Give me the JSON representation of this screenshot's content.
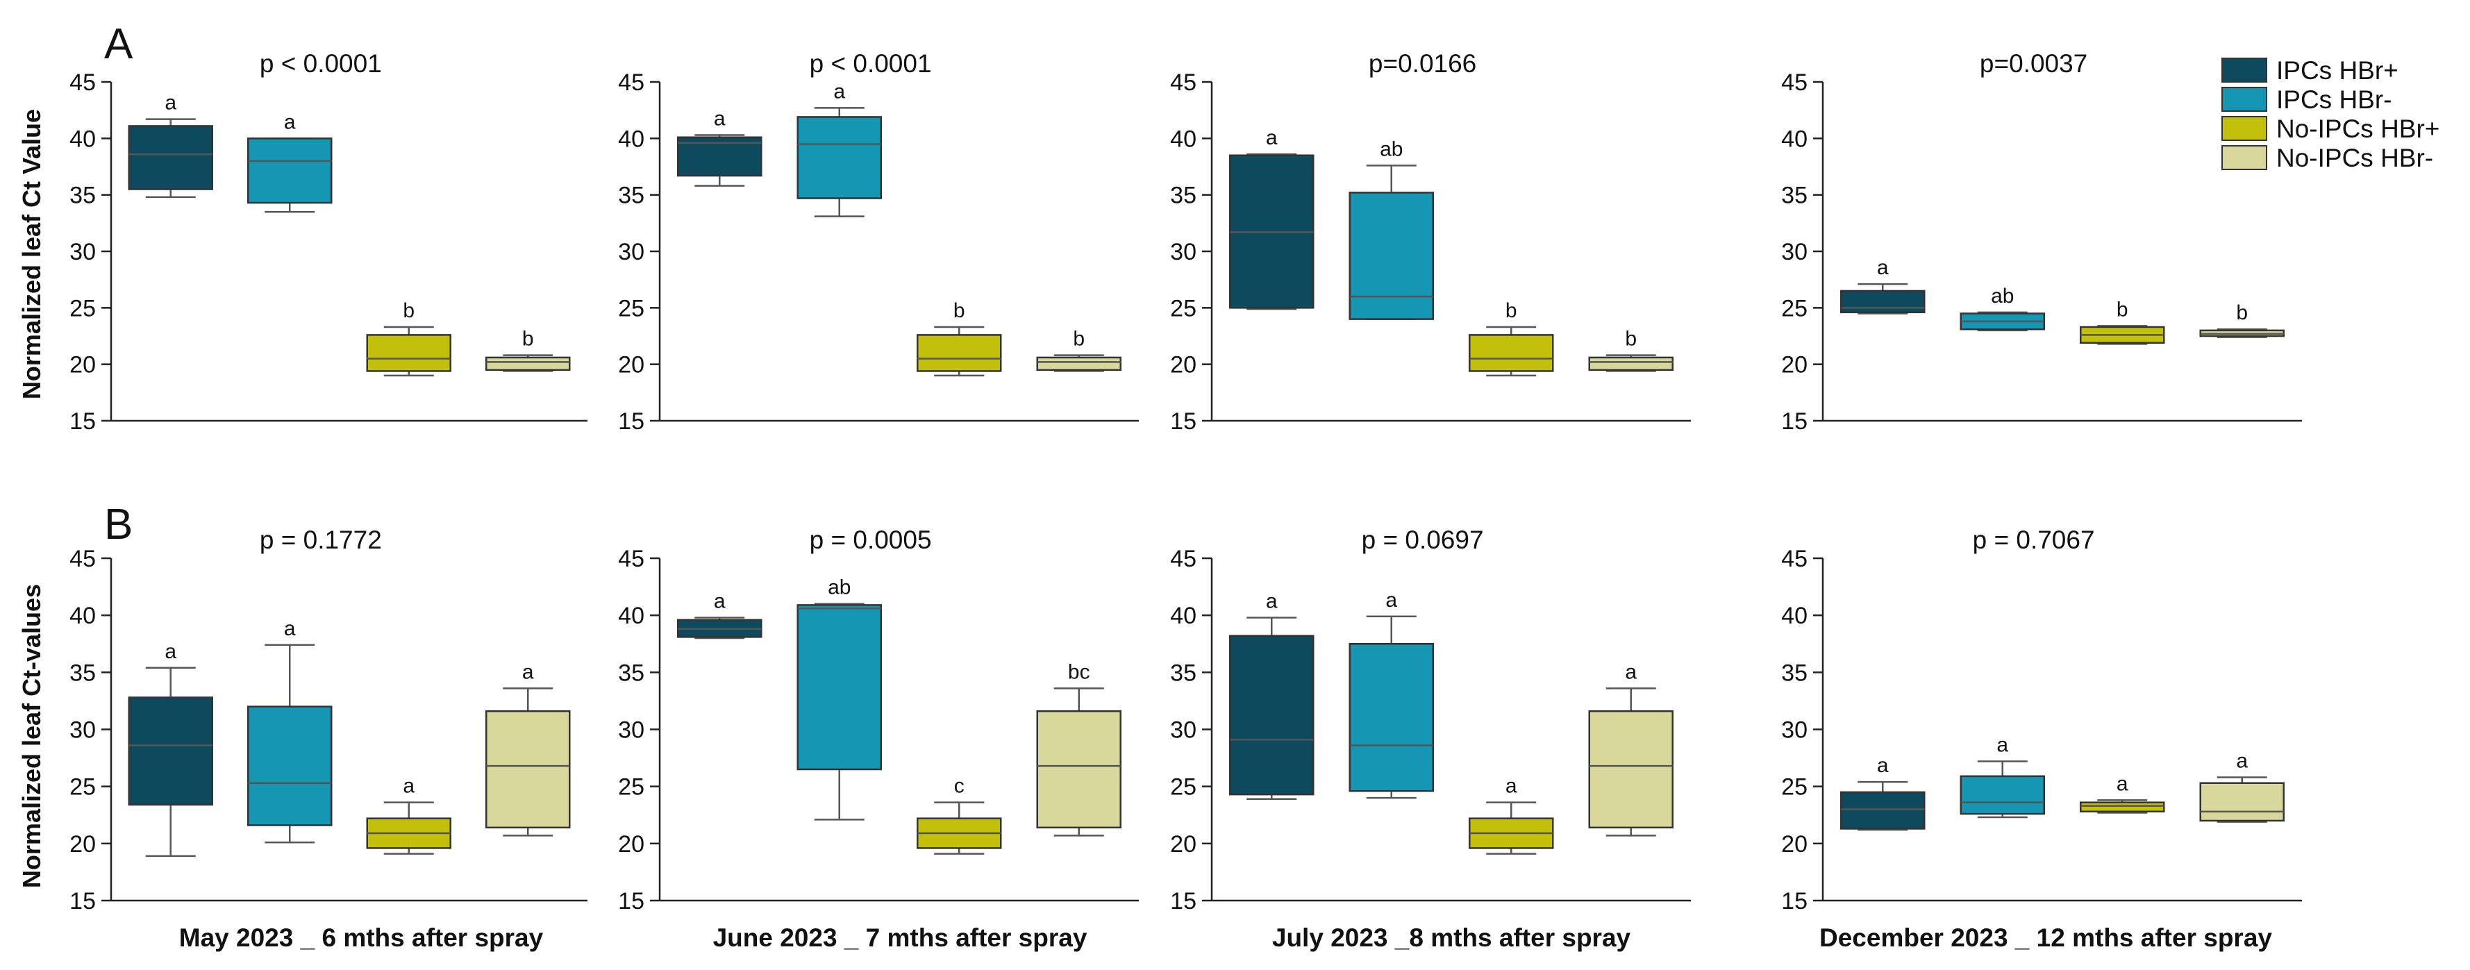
{
  "legend": [
    {
      "name": "IPCs HBr+",
      "color": "#0d4a5e"
    },
    {
      "name": "IPCs HBr-",
      "color": "#1597b4"
    },
    {
      "name": "No-IPCs HBr+",
      "color": "#c2c00a"
    },
    {
      "name": "No-IPCs HBr-",
      "color": "#d8d79c"
    }
  ],
  "panel_letters": [
    "A",
    "B"
  ],
  "row_ylabels": [
    "Normalized leaf Ct Value",
    "Normalized leaf Ct-values"
  ],
  "column_xlabels": [
    "May 2023 _ 6 mths after spray",
    "June 2023 _ 7 mths after spray",
    "July 2023 _8 mths after spray",
    "December 2023 _ 12 mths after spray"
  ],
  "chart_data": [
    {
      "type": "box",
      "row": 0,
      "col": 0,
      "pvalue": "p < 0.0001",
      "ylim": [
        15,
        45
      ],
      "yticks": [
        15,
        20,
        25,
        30,
        35,
        40,
        45
      ],
      "series": [
        {
          "name": "IPCs HBr+",
          "min": 34.8,
          "q1": 35.5,
          "median": 38.6,
          "q3": 41.1,
          "max": 41.7,
          "letter": "a"
        },
        {
          "name": "IPCs HBr-",
          "min": 33.5,
          "q1": 34.3,
          "median": 38.0,
          "q3": 40.0,
          "max": 40.0,
          "letter": "a"
        },
        {
          "name": "No-IPCs HBr+",
          "min": 19.0,
          "q1": 19.4,
          "median": 20.5,
          "q3": 22.6,
          "max": 23.3,
          "letter": "b"
        },
        {
          "name": "No-IPCs HBr-",
          "min": 19.4,
          "q1": 19.5,
          "median": 20.2,
          "q3": 20.6,
          "max": 20.8,
          "letter": "b"
        }
      ]
    },
    {
      "type": "box",
      "row": 0,
      "col": 1,
      "pvalue": "p < 0.0001",
      "ylim": [
        15,
        45
      ],
      "yticks": [
        15,
        20,
        25,
        30,
        35,
        40,
        45
      ],
      "series": [
        {
          "name": "IPCs HBr+",
          "min": 35.8,
          "q1": 36.7,
          "median": 39.6,
          "q3": 40.1,
          "max": 40.3,
          "letter": "a"
        },
        {
          "name": "IPCs HBr-",
          "min": 33.1,
          "q1": 34.7,
          "median": 39.5,
          "q3": 41.9,
          "max": 42.7,
          "letter": "a"
        },
        {
          "name": "No-IPCs HBr+",
          "min": 19.0,
          "q1": 19.4,
          "median": 20.5,
          "q3": 22.6,
          "max": 23.3,
          "letter": "b"
        },
        {
          "name": "No-IPCs HBr-",
          "min": 19.4,
          "q1": 19.5,
          "median": 20.2,
          "q3": 20.6,
          "max": 20.8,
          "letter": "b"
        }
      ]
    },
    {
      "type": "box",
      "row": 0,
      "col": 2,
      "pvalue": "p=0.0166",
      "ylim": [
        15,
        45
      ],
      "yticks": [
        15,
        20,
        25,
        30,
        35,
        40,
        45
      ],
      "series": [
        {
          "name": "IPCs HBr+",
          "min": 24.9,
          "q1": 25.0,
          "median": 31.7,
          "q3": 38.5,
          "max": 38.6,
          "letter": "a"
        },
        {
          "name": "IPCs HBr-",
          "min": 24.0,
          "q1": 24.0,
          "median": 26.0,
          "q3": 35.2,
          "max": 37.6,
          "letter": "ab"
        },
        {
          "name": "No-IPCs HBr+",
          "min": 19.0,
          "q1": 19.4,
          "median": 20.5,
          "q3": 22.6,
          "max": 23.3,
          "letter": "b"
        },
        {
          "name": "No-IPCs HBr-",
          "min": 19.4,
          "q1": 19.5,
          "median": 20.2,
          "q3": 20.6,
          "max": 20.8,
          "letter": "b"
        }
      ]
    },
    {
      "type": "box",
      "row": 0,
      "col": 3,
      "pvalue": "p=0.0037",
      "ylim": [
        15,
        45
      ],
      "yticks": [
        15,
        20,
        25,
        30,
        35,
        40,
        45
      ],
      "series": [
        {
          "name": "IPCs HBr+",
          "min": 24.5,
          "q1": 24.6,
          "median": 25.0,
          "q3": 26.5,
          "max": 27.1,
          "letter": "a"
        },
        {
          "name": "IPCs HBr-",
          "min": 23.0,
          "q1": 23.1,
          "median": 23.8,
          "q3": 24.5,
          "max": 24.6,
          "letter": "ab"
        },
        {
          "name": "No-IPCs HBr+",
          "min": 21.8,
          "q1": 21.9,
          "median": 22.6,
          "q3": 23.3,
          "max": 23.4,
          "letter": "b"
        },
        {
          "name": "No-IPCs HBr-",
          "min": 22.4,
          "q1": 22.5,
          "median": 22.7,
          "q3": 23.0,
          "max": 23.1,
          "letter": "b"
        }
      ]
    },
    {
      "type": "box",
      "row": 1,
      "col": 0,
      "pvalue": "p = 0.1772",
      "ylim": [
        15,
        45
      ],
      "yticks": [
        15,
        20,
        25,
        30,
        35,
        40,
        45
      ],
      "series": [
        {
          "name": "IPCs HBr+",
          "min": 18.9,
          "q1": 23.4,
          "median": 28.6,
          "q3": 32.8,
          "max": 35.4,
          "letter": "a"
        },
        {
          "name": "IPCs HBr-",
          "min": 20.1,
          "q1": 21.6,
          "median": 25.3,
          "q3": 32.0,
          "max": 37.4,
          "letter": "a"
        },
        {
          "name": "No-IPCs HBr+",
          "min": 19.1,
          "q1": 19.6,
          "median": 20.9,
          "q3": 22.2,
          "max": 23.6,
          "letter": "a"
        },
        {
          "name": "No-IPCs HBr-",
          "min": 20.7,
          "q1": 21.4,
          "median": 26.8,
          "q3": 31.6,
          "max": 33.6,
          "letter": "a"
        }
      ]
    },
    {
      "type": "box",
      "row": 1,
      "col": 1,
      "pvalue": "p = 0.0005",
      "ylim": [
        15,
        45
      ],
      "yticks": [
        15,
        20,
        25,
        30,
        35,
        40,
        45
      ],
      "series": [
        {
          "name": "IPCs HBr+",
          "min": 38.0,
          "q1": 38.1,
          "median": 38.8,
          "q3": 39.6,
          "max": 39.8,
          "letter": "a"
        },
        {
          "name": "IPCs HBr-",
          "min": 22.1,
          "q1": 26.5,
          "median": 40.6,
          "q3": 40.9,
          "max": 41.0,
          "letter": "ab"
        },
        {
          "name": "No-IPCs HBr+",
          "min": 19.1,
          "q1": 19.6,
          "median": 20.9,
          "q3": 22.2,
          "max": 23.6,
          "letter": "c"
        },
        {
          "name": "No-IPCs HBr-",
          "min": 20.7,
          "q1": 21.4,
          "median": 26.8,
          "q3": 31.6,
          "max": 33.6,
          "letter": "bc"
        }
      ]
    },
    {
      "type": "box",
      "row": 1,
      "col": 2,
      "pvalue": "p = 0.0697",
      "ylim": [
        15,
        45
      ],
      "yticks": [
        15,
        20,
        25,
        30,
        35,
        40,
        45
      ],
      "series": [
        {
          "name": "IPCs HBr+",
          "min": 23.9,
          "q1": 24.3,
          "median": 29.1,
          "q3": 38.2,
          "max": 39.8,
          "letter": "a"
        },
        {
          "name": "IPCs HBr-",
          "min": 24.0,
          "q1": 24.6,
          "median": 28.6,
          "q3": 37.5,
          "max": 39.9,
          "letter": "a"
        },
        {
          "name": "No-IPCs HBr+",
          "min": 19.1,
          "q1": 19.6,
          "median": 20.9,
          "q3": 22.2,
          "max": 23.6,
          "letter": "a"
        },
        {
          "name": "No-IPCs HBr-",
          "min": 20.7,
          "q1": 21.4,
          "median": 26.8,
          "q3": 31.6,
          "max": 33.6,
          "letter": "a"
        }
      ]
    },
    {
      "type": "box",
      "row": 1,
      "col": 3,
      "pvalue": "p = 0.7067",
      "ylim": [
        15,
        45
      ],
      "yticks": [
        15,
        20,
        25,
        30,
        35,
        40,
        45
      ],
      "series": [
        {
          "name": "IPCs HBr+",
          "min": 21.2,
          "q1": 21.3,
          "median": 23.0,
          "q3": 24.5,
          "max": 25.4,
          "letter": "a"
        },
        {
          "name": "IPCs HBr-",
          "min": 22.3,
          "q1": 22.6,
          "median": 23.6,
          "q3": 25.9,
          "max": 27.2,
          "letter": "a"
        },
        {
          "name": "No-IPCs HBr+",
          "min": 22.7,
          "q1": 22.8,
          "median": 23.3,
          "q3": 23.6,
          "max": 23.8,
          "letter": "a"
        },
        {
          "name": "No-IPCs HBr-",
          "min": 21.9,
          "q1": 22.0,
          "median": 22.8,
          "q3": 25.3,
          "max": 25.8,
          "letter": "a"
        }
      ]
    }
  ]
}
